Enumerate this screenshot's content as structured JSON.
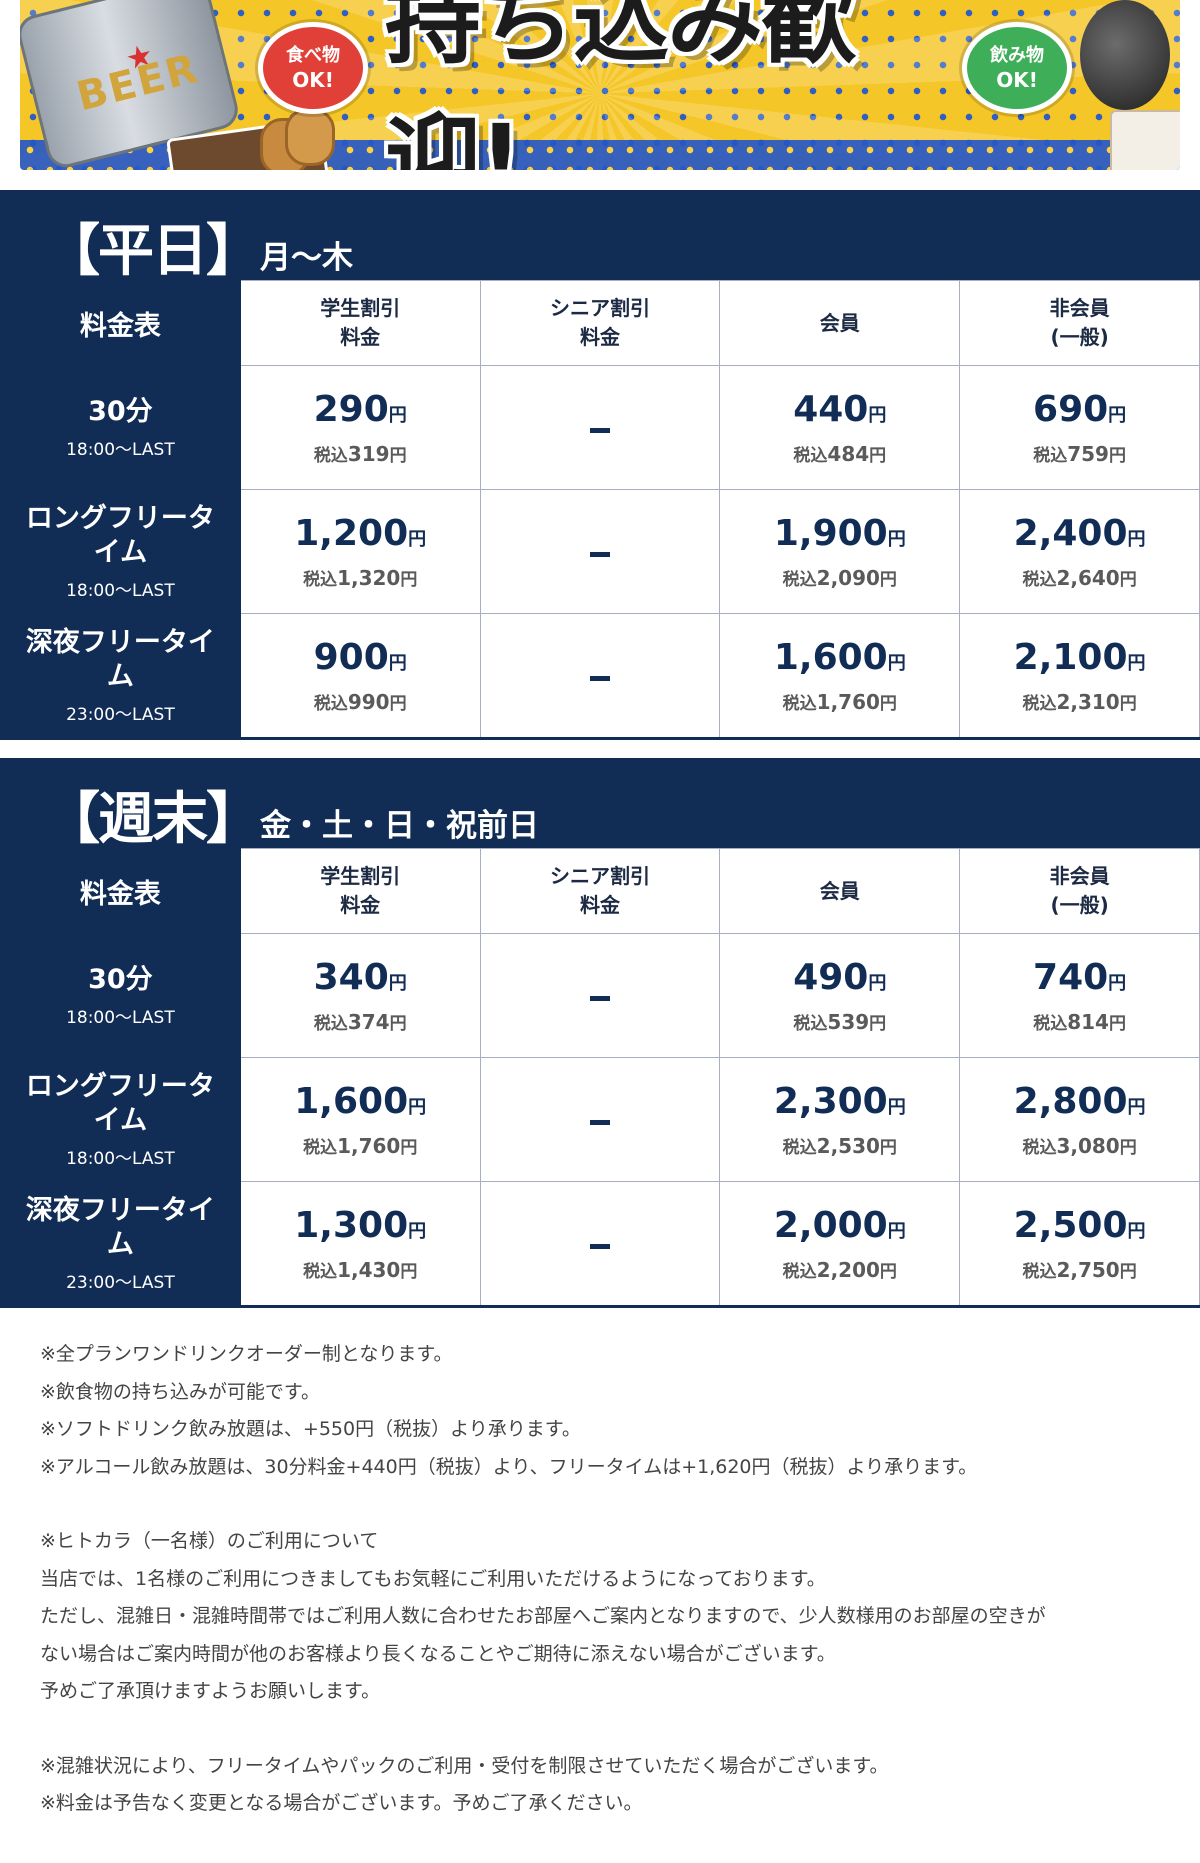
{
  "banner": {
    "title": "持ち込み歓迎!",
    "left_badge_line1": "食べ物",
    "left_badge_line2": "OK!",
    "right_badge_line1": "飲み物",
    "right_badge_line2": "OK!",
    "can_text": "BEER"
  },
  "colors": {
    "navy": "#112c55",
    "banner_yellow": "#f5c628",
    "badge_red": "#e04038",
    "badge_green": "#3fae59"
  },
  "columns": [
    {
      "line1": "学生割引",
      "line2": "料金"
    },
    {
      "line1": "シニア割引",
      "line2": "料金"
    },
    {
      "line1": "会員",
      "line2": ""
    },
    {
      "line1": "非会員",
      "line2": "(一般)"
    }
  ],
  "table_corner": "料金表",
  "yen": "円",
  "tax_prefix": "税込",
  "dash_symbol": "–",
  "weekday": {
    "title": "【平日】",
    "days": "月〜木",
    "rows": [
      {
        "name1": "30分",
        "name2": "",
        "time": "18:00〜LAST",
        "prices": [
          {
            "main": "290",
            "tax": "319"
          },
          null,
          {
            "main": "440",
            "tax": "484"
          },
          {
            "main": "690",
            "tax": "759"
          }
        ]
      },
      {
        "name1": "ロングフリータ",
        "name2": "イム",
        "time": "18:00〜LAST",
        "prices": [
          {
            "main": "1,200",
            "tax": "1,320"
          },
          null,
          {
            "main": "1,900",
            "tax": "2,090"
          },
          {
            "main": "2,400",
            "tax": "2,640"
          }
        ]
      },
      {
        "name1": "深夜フリータイ",
        "name2": "ム",
        "time": "23:00〜LAST",
        "prices": [
          {
            "main": "900",
            "tax": "990"
          },
          null,
          {
            "main": "1,600",
            "tax": "1,760"
          },
          {
            "main": "2,100",
            "tax": "2,310"
          }
        ]
      }
    ]
  },
  "weekend": {
    "title": "【週末】",
    "days": "金・土・日・祝前日",
    "rows": [
      {
        "name1": "30分",
        "name2": "",
        "time": "18:00〜LAST",
        "prices": [
          {
            "main": "340",
            "tax": "374"
          },
          null,
          {
            "main": "490",
            "tax": "539"
          },
          {
            "main": "740",
            "tax": "814"
          }
        ]
      },
      {
        "name1": "ロングフリータ",
        "name2": "イム",
        "time": "18:00〜LAST",
        "prices": [
          {
            "main": "1,600",
            "tax": "1,760"
          },
          null,
          {
            "main": "2,300",
            "tax": "2,530"
          },
          {
            "main": "2,800",
            "tax": "3,080"
          }
        ]
      },
      {
        "name1": "深夜フリータイ",
        "name2": "ム",
        "time": "23:00〜LAST",
        "prices": [
          {
            "main": "1,300",
            "tax": "1,430"
          },
          null,
          {
            "main": "2,000",
            "tax": "2,200"
          },
          {
            "main": "2,500",
            "tax": "2,750"
          }
        ]
      }
    ]
  },
  "notes": [
    "※全プランワンドリンクオーダー制となります。",
    "※飲食物の持ち込みが可能です。",
    "※ソフトドリンク飲み放題は、+550円（税抜）より承ります。",
    "※アルコール飲み放題は、30分料金+440円（税抜）より、フリータイムは+1,620円（税抜）より承ります。",
    "",
    "※ヒトカラ（一名様）のご利用について",
    "当店では、1名様のご利用につきましてもお気軽にご利用いただけるようになっております。",
    "ただし、混雑日・混雑時間帯ではご利用人数に合わせたお部屋へご案内となりますので、少人数様用のお部屋の空きが",
    "ない場合はご案内時間が他のお客様より長くなることやご期待に添えない場合がございます。",
    "予めご了承頂けますようお願いします。",
    "",
    "※混雑状況により、フリータイムやパックのご利用・受付を制限させていただく場合がございます。",
    "※料金は予告なく変更となる場合がございます。予めご了承ください。"
  ]
}
